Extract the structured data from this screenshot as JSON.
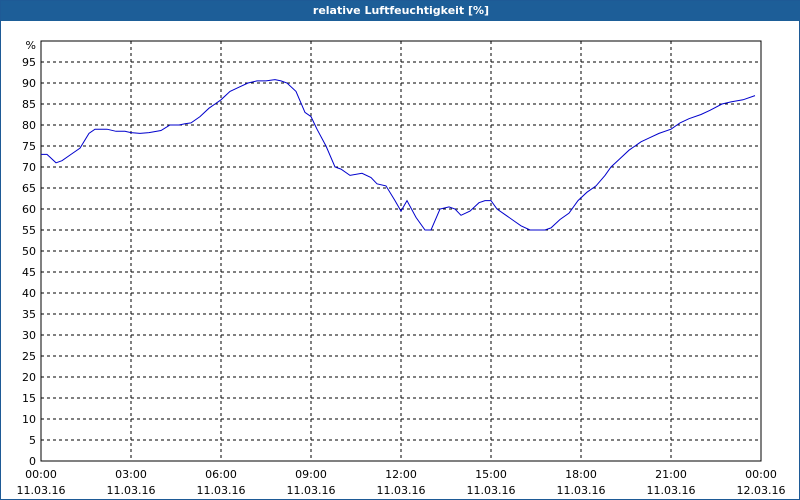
{
  "window": {
    "title": "relative Luftfeuchtigkeit [%]"
  },
  "colors": {
    "title_bar": "#1d5e98",
    "series_line": "#0000cc",
    "grid": "#000000",
    "background": "#ffffff"
  },
  "chart_data": {
    "type": "line",
    "title": "relative Luftfeuchtigkeit [%]",
    "ylabel": "%",
    "xlabel": "",
    "ylim": [
      0,
      100
    ],
    "xlim_hours": [
      0,
      24
    ],
    "y_ticks": [
      "0",
      "5",
      "10",
      "15",
      "20",
      "25",
      "30",
      "35",
      "40",
      "45",
      "50",
      "55",
      "60",
      "65",
      "70",
      "75",
      "80",
      "85",
      "90",
      "95"
    ],
    "x_ticks": [
      {
        "time": "00:00",
        "date": "11.03.16"
      },
      {
        "time": "03:00",
        "date": "11.03.16"
      },
      {
        "time": "06:00",
        "date": "11.03.16"
      },
      {
        "time": "09:00",
        "date": "11.03.16"
      },
      {
        "time": "12:00",
        "date": "11.03.16"
      },
      {
        "time": "15:00",
        "date": "11.03.16"
      },
      {
        "time": "18:00",
        "date": "11.03.16"
      },
      {
        "time": "21:00",
        "date": "11.03.16"
      },
      {
        "time": "00:00",
        "date": "12.03.16"
      }
    ],
    "grid": true,
    "grid_style": "dashed",
    "series": [
      {
        "x_hours": [
          0,
          0.2,
          0.5,
          0.7,
          1.0,
          1.3,
          1.6,
          1.8,
          2.0,
          2.2,
          2.5,
          2.8,
          3.0,
          3.3,
          3.6,
          4.0,
          4.3,
          4.6,
          4.8,
          5.0,
          5.3,
          5.6,
          5.8,
          6.0,
          6.3,
          6.6,
          6.9,
          7.2,
          7.5,
          7.8,
          8.0,
          8.2,
          8.5,
          8.8,
          9.0,
          9.2,
          9.5,
          9.8,
          10.0,
          10.3,
          10.7,
          11.0,
          11.2,
          11.5,
          11.8,
          12.0,
          12.2,
          12.5,
          12.8,
          13.0,
          13.3,
          13.6,
          13.8,
          14.0,
          14.3,
          14.6,
          14.8,
          15.0,
          15.2,
          15.5,
          15.8,
          16.0,
          16.3,
          16.6,
          16.8,
          17.0,
          17.3,
          17.6,
          17.9,
          18.2,
          18.5,
          18.8,
          19.0,
          19.3,
          19.6,
          20.0,
          20.3,
          20.6,
          21.0,
          21.3,
          21.6,
          22.0,
          22.3,
          22.7,
          23.0,
          23.4,
          23.8
        ],
        "values": [
          73,
          73,
          71,
          71.5,
          73,
          74.5,
          78,
          79,
          79,
          79,
          78.5,
          78.5,
          78.2,
          78,
          78.2,
          78.7,
          80,
          80,
          80.3,
          80.5,
          82,
          84,
          85,
          86,
          88,
          89,
          90,
          90.5,
          90.5,
          90.8,
          90.5,
          90,
          88,
          83,
          82,
          79,
          75,
          70,
          69.5,
          68,
          68.5,
          67.5,
          66,
          65.5,
          62,
          59.5,
          62,
          58,
          55,
          55,
          60,
          60.5,
          60,
          58.5,
          59.5,
          61.5,
          62,
          62,
          60,
          58.5,
          57,
          56,
          55,
          55,
          55,
          55.5,
          57.5,
          59,
          62,
          64,
          65.5,
          68,
          70,
          72,
          74,
          76,
          77,
          78,
          79,
          80.5,
          81.5,
          82.5,
          83.5,
          85,
          85.5,
          86,
          87
        ]
      }
    ]
  }
}
